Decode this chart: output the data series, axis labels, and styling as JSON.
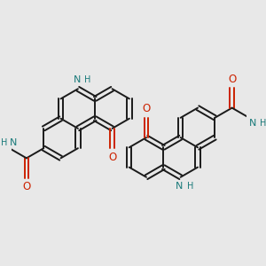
{
  "bg_color": "#e8e8e8",
  "bond_color": "#1a1a1a",
  "n_color": "#1a7a7a",
  "o_color": "#cc2200",
  "figsize": [
    3.0,
    3.0
  ],
  "dpi": 100,
  "xlim": [
    -1.1,
    1.1
  ],
  "ylim": [
    -0.75,
    0.75
  ]
}
